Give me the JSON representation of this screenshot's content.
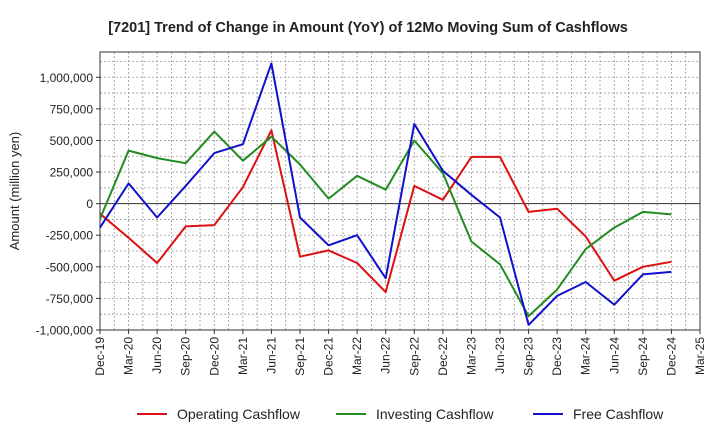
{
  "chart_data": {
    "type": "line",
    "title": "[7201]  Trend of Change in Amount (YoY) of 12Mo Moving Sum of Cashflows",
    "xlabel": "",
    "ylabel": "Amount (million yen)",
    "ylim": [
      -1000000,
      1200000
    ],
    "yticks": [
      -1000000,
      -750000,
      -500000,
      -250000,
      0,
      250000,
      500000,
      750000,
      1000000
    ],
    "ytick_labels": [
      "-1,000,000",
      "-750,000",
      "-500,000",
      "-250,000",
      "0",
      "250,000",
      "500,000",
      "750,000",
      "1,000,000"
    ],
    "categories": [
      "Dec-19",
      "Mar-20",
      "Jun-20",
      "Sep-20",
      "Dec-20",
      "Mar-21",
      "Jun-21",
      "Sep-21",
      "Dec-21",
      "Mar-22",
      "Jun-22",
      "Sep-22",
      "Dec-22",
      "Mar-23",
      "Jun-23",
      "Sep-23",
      "Dec-23",
      "Mar-24",
      "Jun-24",
      "Sep-24",
      "Dec-24",
      "Mar-25"
    ],
    "grid": true,
    "legend_position": "bottom",
    "series": [
      {
        "name": "Operating Cashflow",
        "color": "#dd1111",
        "values": [
          -80000,
          -270000,
          -470000,
          -180000,
          -170000,
          130000,
          580000,
          -420000,
          -370000,
          -470000,
          -700000,
          140000,
          30000,
          370000,
          370000,
          -65000,
          -40000,
          -260000,
          -610000,
          -500000,
          -460000,
          null
        ]
      },
      {
        "name": "Investing Cashflow",
        "color": "#228b22",
        "values": [
          -120000,
          420000,
          360000,
          320000,
          570000,
          340000,
          530000,
          310000,
          40000,
          220000,
          110000,
          500000,
          240000,
          -300000,
          -480000,
          -890000,
          -680000,
          -360000,
          -190000,
          -65000,
          -85000,
          null
        ]
      },
      {
        "name": "Free Cashflow",
        "color": "#1111cc",
        "values": [
          -190000,
          160000,
          -110000,
          140000,
          400000,
          470000,
          1110000,
          -110000,
          -330000,
          -250000,
          -590000,
          630000,
          260000,
          70000,
          -110000,
          -960000,
          -730000,
          -620000,
          -800000,
          -560000,
          -540000,
          null
        ]
      }
    ]
  }
}
